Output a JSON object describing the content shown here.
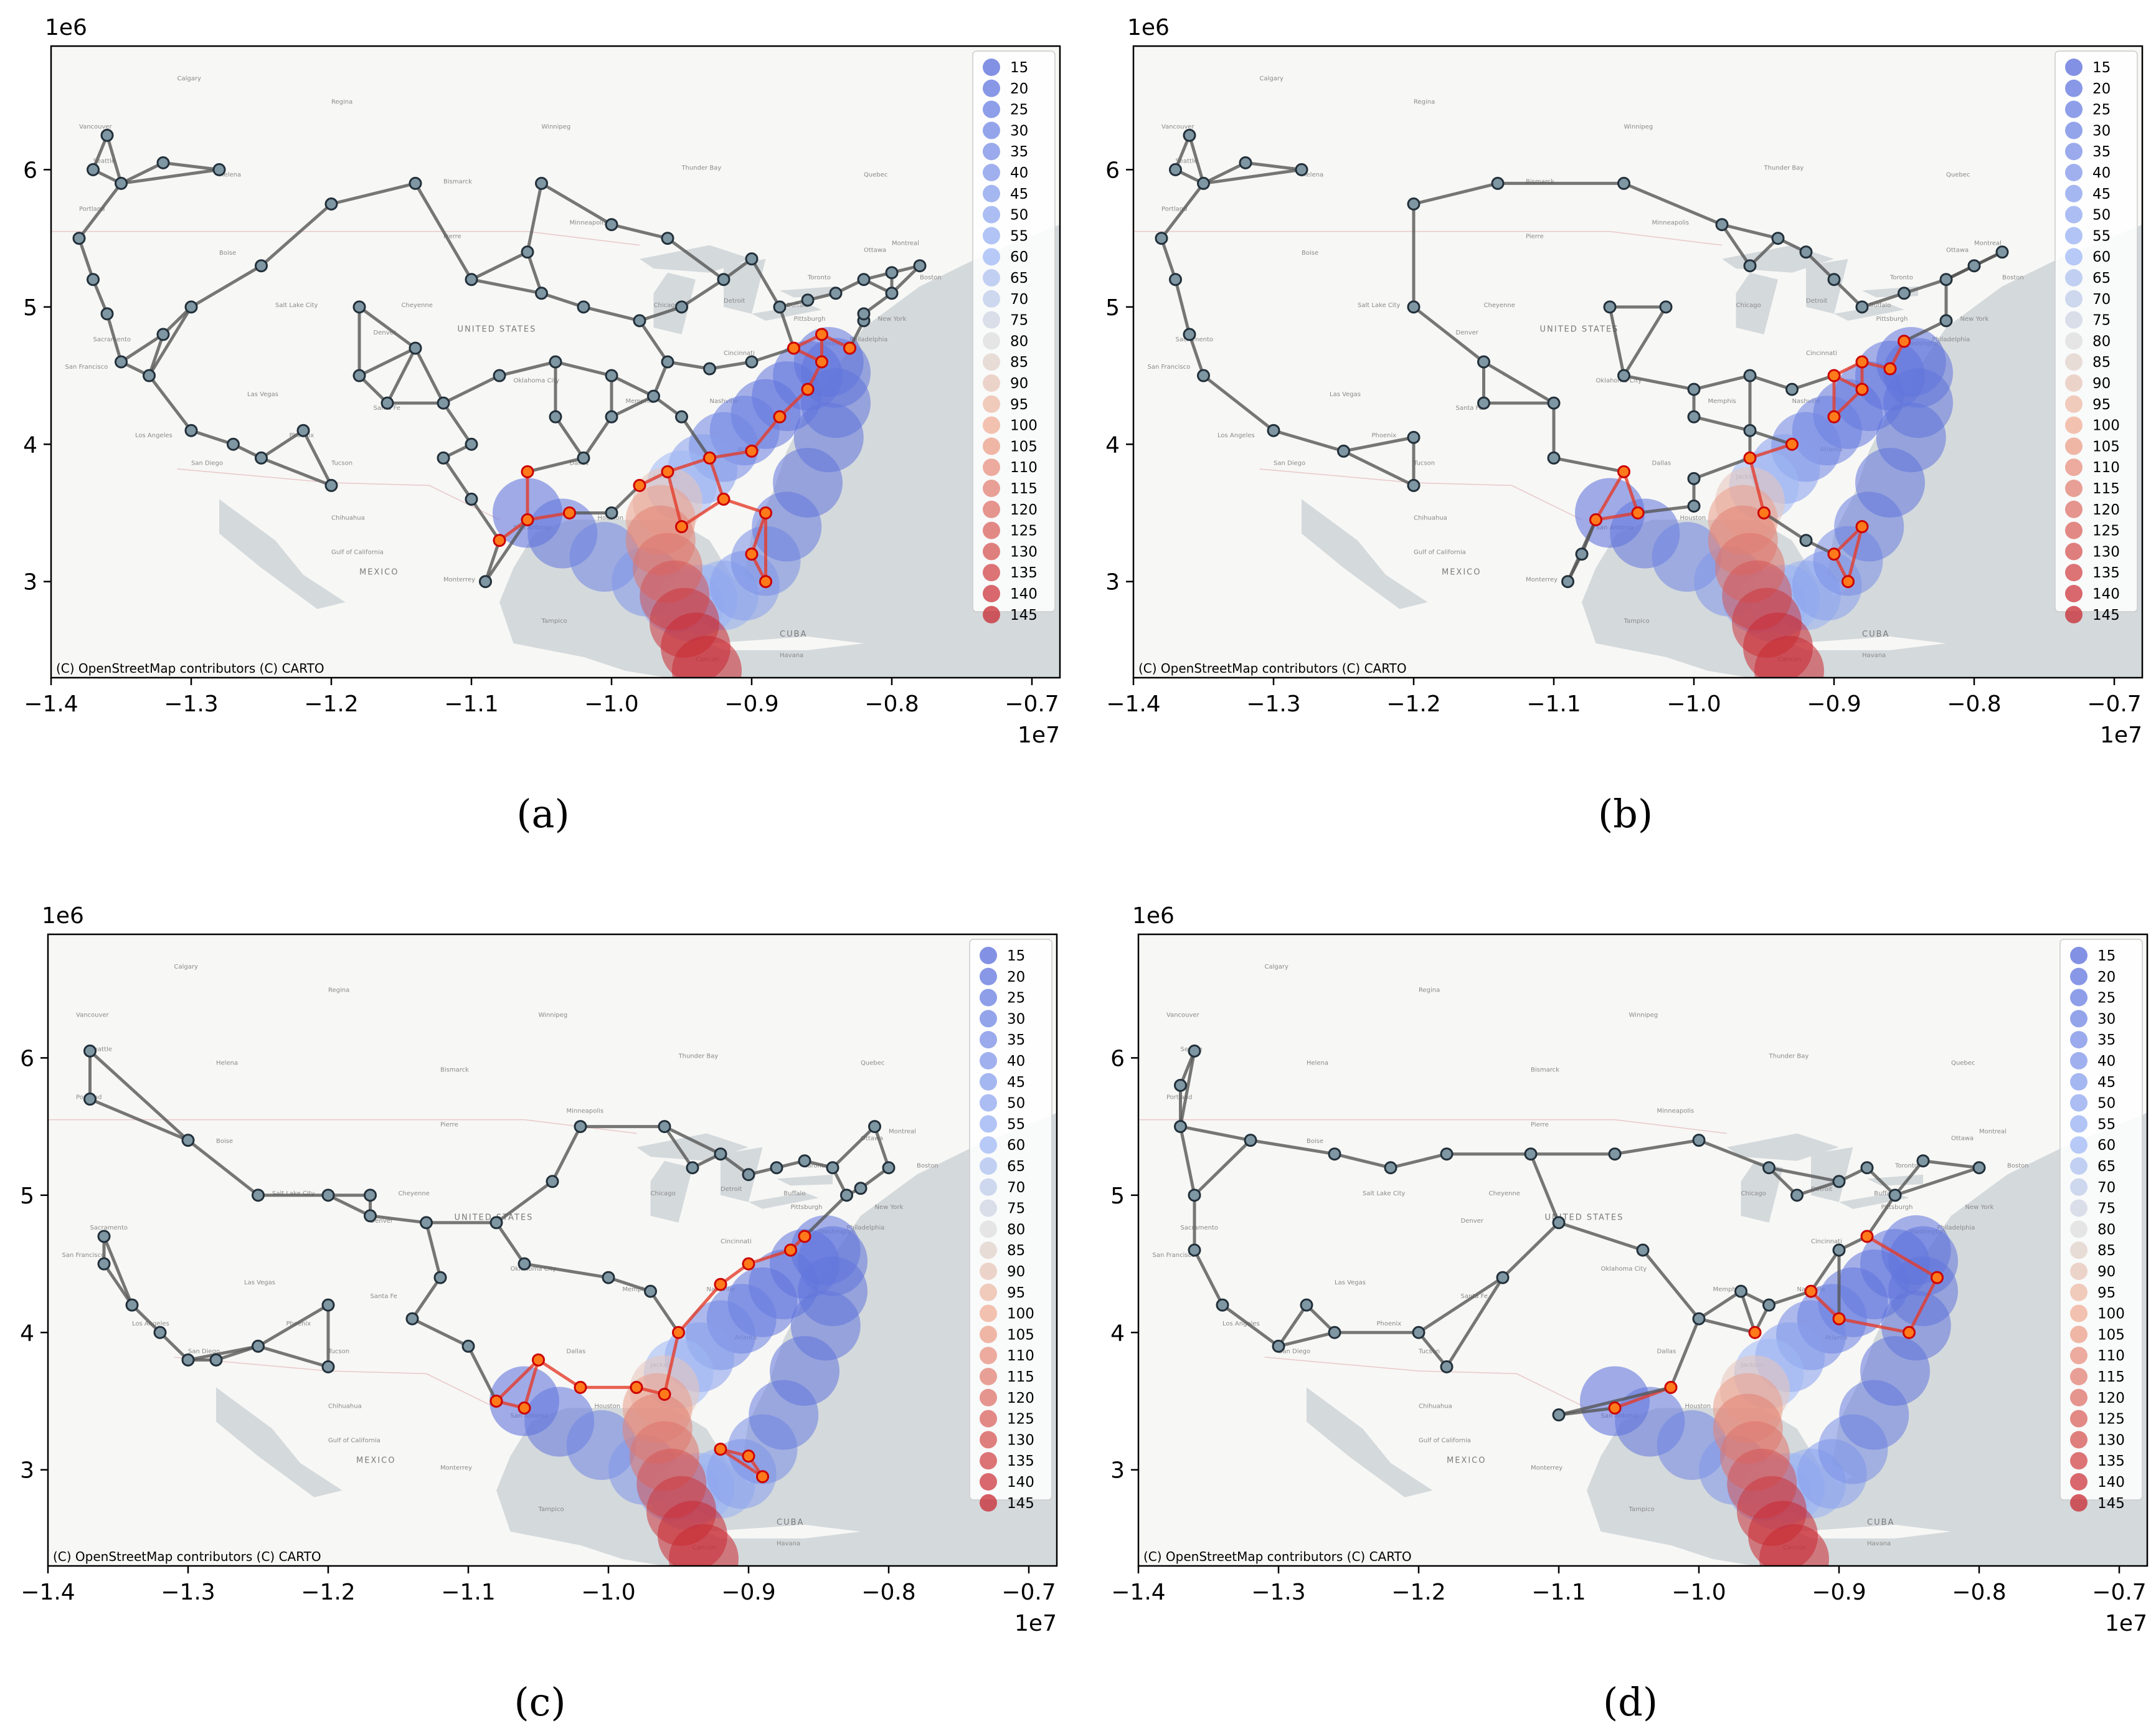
{
  "figure": {
    "x_ticks": [
      "−1.4",
      "−1.3",
      "−1.2",
      "−1.1",
      "−1.0",
      "−0.9",
      "−0.8",
      "−0.7"
    ],
    "x_tick_values": [
      -1.4,
      -1.3,
      -1.2,
      -1.1,
      -1.0,
      -0.9,
      -0.8,
      -0.7
    ],
    "y_ticks": [
      "3",
      "4",
      "5",
      "6"
    ],
    "y_tick_values": [
      3,
      4,
      5,
      6
    ],
    "x_offset": "1e7",
    "y_offset": "1e6",
    "attribution": "(C) OpenStreetMap contributors (C) CARTO",
    "legend_values": [
      "15",
      "20",
      "25",
      "30",
      "35",
      "40",
      "45",
      "50",
      "55",
      "60",
      "65",
      "70",
      "75",
      "80",
      "85",
      "90",
      "95",
      "100",
      "105",
      "110",
      "115",
      "120",
      "125",
      "130",
      "135",
      "140",
      "145"
    ],
    "base_map_labels": {
      "countries": [
        "UNITED STATES",
        "MEXICO",
        "CUBA"
      ],
      "places": [
        "Calgary",
        "Regina",
        "Saskatoon",
        "Winnipeg",
        "Thunder Bay",
        "Quebec",
        "Helena",
        "Bismarck",
        "Pierre",
        "Boise",
        "Minneapolis",
        "Montreal",
        "Toronto",
        "Ottawa",
        "Chicago",
        "Detroit",
        "Buffalo",
        "Boston",
        "New York",
        "Philadelphia",
        "Pittsburgh",
        "Washington",
        "Cincinnati",
        "Nashville",
        "Memphis",
        "Atlanta",
        "Jackson",
        "Denver",
        "Cheyenne",
        "Salt Lake City",
        "Sacramento",
        "San Francisco",
        "Los Angeles",
        "San Diego",
        "Las Vegas",
        "Phoenix",
        "Tucson",
        "Santa Fe",
        "Oklahoma City",
        "Dallas",
        "Houston",
        "San Antonio",
        "Chihuahua",
        "Monterrey",
        "Tampico",
        "Cancún",
        "Havana",
        "Vancouver",
        "Seattle",
        "Portland",
        "Gulf of California"
      ]
    },
    "colors": {
      "map_land": "#f7f7f5",
      "map_water": "#d4d9dc",
      "edge": "#555555",
      "node_fill": "#7f96a3",
      "node_outline": "#22303a",
      "affected_node_fill": "#ff7a1a",
      "affected_node_outline": "#cc0000",
      "affected_edge": "#e33b2a"
    },
    "panels": [
      {
        "label": "(a)"
      },
      {
        "label": "(b)"
      },
      {
        "label": "(c)"
      },
      {
        "label": "(d)"
      }
    ]
  },
  "chart_data": [
    {
      "type": "scatter",
      "label": "(a)",
      "xlabel": "",
      "ylabel": "",
      "xlim": [
        -1.4,
        -0.68
      ],
      "ylim": [
        2.3,
        6.9
      ],
      "x_scale": "1e7",
      "y_scale": "1e6",
      "grid": false,
      "legend": "top-right",
      "legend_entries": "hurricane track marker sizes/colors 15–145",
      "hurricane_track_x": [
        -1.06,
        -1.035,
        -1.005,
        -0.975,
        -0.955,
        -0.945,
        -0.935,
        -0.92,
        -0.905,
        -0.89,
        -0.875,
        -0.86,
        -0.845,
        -0.84,
        -0.84,
        -0.845,
        -0.86,
        -0.875,
        -0.89,
        -0.905,
        -0.92,
        -0.935,
        -0.95,
        -0.96,
        -0.965,
        -0.965,
        -0.96,
        -0.955,
        -0.948,
        -0.94,
        -0.932
      ],
      "hurricane_track_y": [
        3.5,
        3.35,
        3.18,
        3.0,
        2.88,
        2.82,
        2.87,
        2.9,
        2.97,
        3.15,
        3.4,
        3.72,
        4.05,
        4.3,
        4.52,
        4.6,
        4.5,
        4.35,
        4.22,
        4.1,
        3.98,
        3.82,
        3.7,
        3.58,
        3.45,
        3.3,
        3.1,
        2.9,
        2.7,
        2.52,
        2.35
      ],
      "hurricane_track_wind": [
        15,
        20,
        30,
        40,
        50,
        55,
        60,
        55,
        45,
        35,
        25,
        20,
        20,
        20,
        20,
        20,
        20,
        20,
        20,
        25,
        30,
        45,
        60,
        90,
        105,
        115,
        120,
        130,
        140,
        145,
        145
      ]
    },
    {
      "type": "scatter",
      "label": "(b)",
      "xlabel": "",
      "ylabel": "",
      "xlim": [
        -1.4,
        -0.68
      ],
      "ylim": [
        2.3,
        6.9
      ],
      "x_scale": "1e7",
      "y_scale": "1e6",
      "grid": false,
      "legend": "top-right"
    },
    {
      "type": "scatter",
      "label": "(c)",
      "xlabel": "",
      "ylabel": "",
      "xlim": [
        -1.4,
        -0.68
      ],
      "ylim": [
        2.3,
        6.9
      ],
      "x_scale": "1e7",
      "y_scale": "1e6",
      "grid": false,
      "legend": "top-right"
    },
    {
      "type": "scatter",
      "label": "(d)",
      "xlabel": "",
      "ylabel": "",
      "xlim": [
        -1.4,
        -0.68
      ],
      "ylim": [
        2.3,
        6.9
      ],
      "x_scale": "1e7",
      "y_scale": "1e6",
      "grid": false,
      "legend": "top-right"
    }
  ]
}
